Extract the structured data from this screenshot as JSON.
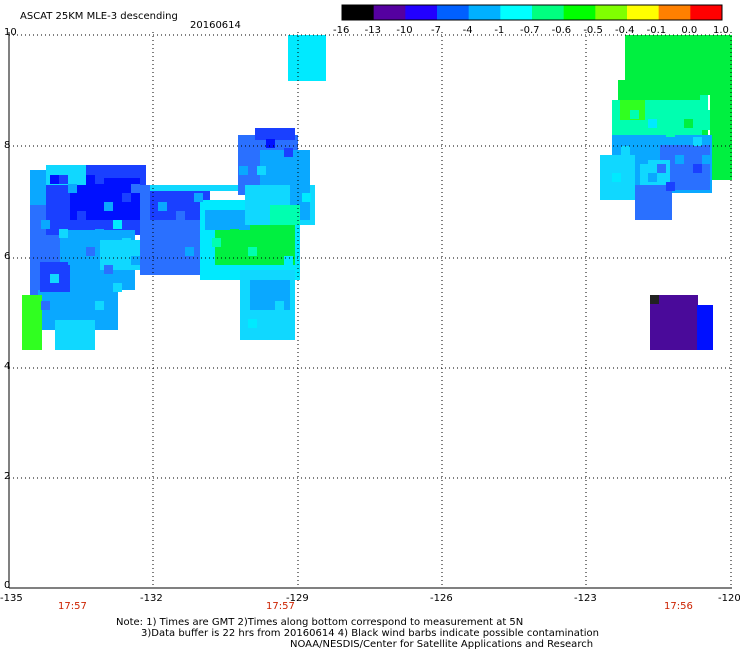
{
  "header": {
    "title": "ASCAT 25KM MLE-3 descending",
    "date": "20160614"
  },
  "colorbar": {
    "ticks": [
      "-16",
      "-13",
      "-10",
      "-7",
      "-4",
      "-1",
      "-0.7",
      "-0.6",
      "-0.5",
      "-0.4",
      "-0.1",
      "0.0",
      "1.0"
    ],
    "colors": [
      "#000000",
      "#5500a0",
      "#2200ff",
      "#0060ff",
      "#00b0ff",
      "#00ffff",
      "#00ff80",
      "#00ff00",
      "#80ff00",
      "#ffff00",
      "#ff8000",
      "#ff0000"
    ]
  },
  "map": {
    "x_ticks": [
      "-135",
      "-132",
      "-129",
      "-126",
      "-123",
      "-120"
    ],
    "y_ticks": [
      "0",
      "2",
      "4",
      "6",
      "8",
      "10"
    ],
    "times": [
      "17:57",
      "17:57",
      "17:56"
    ]
  },
  "notes": {
    "line1": "Note: 1) Times are GMT 2)Times along bottom correspond to measurement at 5N",
    "line2": "3)Data buffer is 22 hrs from 20160614 4) Black wind barbs indicate possible contamination",
    "line3": "NOAA/NESDIS/Center for Satellite Applications and Research"
  },
  "palette": {
    "dark_violet": "#4a0a9a",
    "deep_blue": "#0010ff",
    "blue": "#1a40ff",
    "mid_blue": "#2a70ff",
    "sky": "#0aa8ff",
    "light_cyan": "#10d8ff",
    "cyan": "#00eaff",
    "aqua_green": "#00ffb0",
    "green": "#00f040",
    "bright_green": "#30ff20"
  }
}
